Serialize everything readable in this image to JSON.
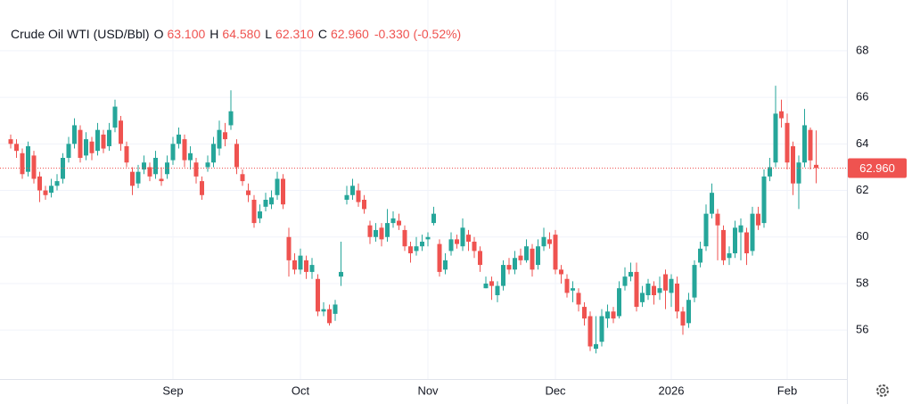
{
  "chart_data": {
    "type": "candlestick",
    "title": "Crude Oil WTI (USD/Bbl)",
    "quote": [
      {
        "key": "O",
        "value": "63.100"
      },
      {
        "key": "H",
        "value": "64.580"
      },
      {
        "key": "L",
        "value": "62.310"
      },
      {
        "key": "C",
        "value": "62.960"
      }
    ],
    "change": "-0.330",
    "change_percent": "(-0.52%)",
    "last_price": {
      "value": 62.96,
      "label": "62.960"
    },
    "up_color": "#26a69a",
    "down_color": "#ef5350",
    "ylim": [
      53.9,
      70.18
    ],
    "yticks": [
      56,
      58,
      60,
      62,
      64,
      66,
      68
    ],
    "grid": true,
    "categories": [
      null,
      null,
      null,
      null,
      null,
      null,
      null,
      null,
      null,
      null,
      null,
      null,
      null,
      null,
      null,
      null,
      null,
      null,
      null,
      null,
      null,
      null,
      null,
      null,
      null,
      null,
      null,
      null,
      "Sep",
      null,
      null,
      null,
      null,
      null,
      null,
      null,
      null,
      null,
      null,
      null,
      null,
      null,
      null,
      null,
      null,
      null,
      null,
      null,
      null,
      null,
      "Oct",
      null,
      null,
      null,
      null,
      null,
      null,
      null,
      null,
      null,
      null,
      null,
      null,
      null,
      null,
      null,
      null,
      null,
      null,
      null,
      null,
      null,
      "Nov",
      null,
      null,
      null,
      null,
      null,
      null,
      null,
      null,
      null,
      null,
      null,
      null,
      null,
      null,
      null,
      null,
      null,
      null,
      null,
      null,
      null,
      "Dec",
      null,
      null,
      null,
      null,
      null,
      null,
      null,
      null,
      null,
      null,
      null,
      null,
      null,
      null,
      null,
      null,
      null,
      null,
      null,
      "2026",
      null,
      null,
      null,
      null,
      null,
      null,
      null,
      null,
      null,
      null,
      null,
      null,
      null,
      null,
      null,
      null,
      null,
      null,
      null,
      "Feb",
      null,
      null,
      null,
      null,
      null
    ],
    "open": [
      64.2,
      64.0,
      63.6,
      62.8,
      63.5,
      62.6,
      62.0,
      61.9,
      62.2,
      62.5,
      63.4,
      64.0,
      64.6,
      63.5,
      64.1,
      63.7,
      64.4,
      63.9,
      64.7,
      65.0,
      63.9,
      62.8,
      62.3,
      62.9,
      63.0,
      62.7,
      62.5,
      62.7,
      63.3,
      64.0,
      64.2,
      63.3,
      63.2,
      62.4,
      63.0,
      63.2,
      63.8,
      64.5,
      64.8,
      64.0,
      62.7,
      62.0,
      61.6,
      60.8,
      61.3,
      61.4,
      61.8,
      62.5,
      60.0,
      59.0,
      58.6,
      59.0,
      58.5,
      58.2,
      56.8,
      56.9,
      56.7,
      58.3,
      61.6,
      61.8,
      62.0,
      61.6,
      60.5,
      60.0,
      60.4,
      60.0,
      60.6,
      60.7,
      60.3,
      59.6,
      59.4,
      59.6,
      59.9,
      60.6,
      59.7,
      58.6,
      59.4,
      59.9,
      59.6,
      60.1,
      59.8,
      59.4,
      57.8,
      58.1,
      57.5,
      57.9,
      58.8,
      58.6,
      59.2,
      59.0,
      59.5,
      58.8,
      59.6,
      59.9,
      60.1,
      58.6,
      58.2,
      57.7,
      57.6,
      57.0,
      56.6,
      55.2,
      55.5,
      56.5,
      56.8,
      56.6,
      57.9,
      58.3,
      58.5,
      57.2,
      57.5,
      57.9,
      57.6,
      58.4,
      57.6,
      58.0,
      56.8,
      56.3,
      57.4,
      58.9,
      59.6,
      61.0,
      61.0,
      60.3,
      59.1,
      59.3,
      60.2,
      60.2,
      59.4,
      61.0,
      60.6,
      62.6,
      63.2,
      65.4,
      64.9,
      63.9,
      62.3,
      63.2,
      64.6,
      63.1
    ],
    "high": [
      64.4,
      64.2,
      63.8,
      64.1,
      63.7,
      62.8,
      62.2,
      62.5,
      62.7,
      63.6,
      64.3,
      65.1,
      64.8,
      64.5,
      64.3,
      64.9,
      64.6,
      64.9,
      65.9,
      65.2,
      64.1,
      63.0,
      63.1,
      63.5,
      63.2,
      63.7,
      63.0,
      63.5,
      64.3,
      64.7,
      64.4,
      63.9,
      63.4,
      62.6,
      63.5,
      64.3,
      65.0,
      64.9,
      66.3,
      64.2,
      62.9,
      62.3,
      61.8,
      61.4,
      61.9,
      62.0,
      62.8,
      62.7,
      60.4,
      59.3,
      59.5,
      59.2,
      59.1,
      58.4,
      57.2,
      57.1,
      57.3,
      59.8,
      62.2,
      62.5,
      62.3,
      61.8,
      60.7,
      60.6,
      60.6,
      61.2,
      61.1,
      61.0,
      60.5,
      59.8,
      60.0,
      60.1,
      60.2,
      61.3,
      59.9,
      59.3,
      60.2,
      60.1,
      60.8,
      60.3,
      60.0,
      59.6,
      58.3,
      58.3,
      58.1,
      59.0,
      59.1,
      59.4,
      59.5,
      59.9,
      59.7,
      59.9,
      60.4,
      60.2,
      60.3,
      58.8,
      58.4,
      58.1,
      57.8,
      57.2,
      56.8,
      56.6,
      56.9,
      57.1,
      57.0,
      58.1,
      58.7,
      58.9,
      58.9,
      57.9,
      58.2,
      58.1,
      58.3,
      58.6,
      58.4,
      58.3,
      57.0,
      57.6,
      59.0,
      59.8,
      61.4,
      62.3,
      61.2,
      60.5,
      59.6,
      60.7,
      60.8,
      60.4,
      61.3,
      61.3,
      62.9,
      63.4,
      66.5,
      65.9,
      65.3,
      64.1,
      63.5,
      65.5,
      64.7,
      64.58
    ],
    "low": [
      63.8,
      63.4,
      62.5,
      62.6,
      62.3,
      61.5,
      61.6,
      61.7,
      62.0,
      62.3,
      63.2,
      63.8,
      63.2,
      63.3,
      63.3,
      63.5,
      63.6,
      63.7,
      64.5,
      63.7,
      63.0,
      61.8,
      62.1,
      62.7,
      62.4,
      62.5,
      62.2,
      62.5,
      63.1,
      63.8,
      63.0,
      62.9,
      62.3,
      61.6,
      62.8,
      63.0,
      63.5,
      63.9,
      64.6,
      62.7,
      62.2,
      61.5,
      60.4,
      60.6,
      61.1,
      61.2,
      61.6,
      61.2,
      58.3,
      58.4,
      58.4,
      58.2,
      58.2,
      56.6,
      56.6,
      56.2,
      56.4,
      57.9,
      61.4,
      61.6,
      61.3,
      61.0,
      59.7,
      59.8,
      59.6,
      59.8,
      60.4,
      60.3,
      59.4,
      58.9,
      59.2,
      59.4,
      59.6,
      60.5,
      58.3,
      58.4,
      59.2,
      59.5,
      59.4,
      59.4,
      59.1,
      58.5,
      57.8,
      57.3,
      57.2,
      57.7,
      58.4,
      58.4,
      58.8,
      58.9,
      58.3,
      58.6,
      59.4,
      59.5,
      58.4,
      58.0,
      57.4,
      57.2,
      56.8,
      56.2,
      55.1,
      55.0,
      55.3,
      56.1,
      56.3,
      56.5,
      57.7,
      58.1,
      56.8,
      57.0,
      57.3,
      57.1,
      57.3,
      56.9,
      57.0,
      56.5,
      55.8,
      56.1,
      57.2,
      58.7,
      59.4,
      60.8,
      59.0,
      58.8,
      58.8,
      59.1,
      59.0,
      58.8,
      59.2,
      60.3,
      60.4,
      62.4,
      63.0,
      64.7,
      62.9,
      61.8,
      61.2,
      63.0,
      62.9,
      62.31
    ],
    "close": [
      64.0,
      63.7,
      62.7,
      63.9,
      62.5,
      62.0,
      61.8,
      62.2,
      62.4,
      63.4,
      64.0,
      64.8,
      63.4,
      64.2,
      63.6,
      64.6,
      63.8,
      64.6,
      65.6,
      64.0,
      63.2,
      62.2,
      62.8,
      63.2,
      62.6,
      63.4,
      62.4,
      63.2,
      64.0,
      64.4,
      63.3,
      63.6,
      62.6,
      61.8,
      63.2,
      64.0,
      64.6,
      64.2,
      65.4,
      63.0,
      62.4,
      61.8,
      60.6,
      61.1,
      61.6,
      61.7,
      62.5,
      61.4,
      59.0,
      58.6,
      59.2,
      58.5,
      58.8,
      56.8,
      56.9,
      56.3,
      57.1,
      58.5,
      61.8,
      62.2,
      61.5,
      61.2,
      60.0,
      60.3,
      59.9,
      60.6,
      60.8,
      60.5,
      59.6,
      59.3,
      59.6,
      59.8,
      60.0,
      61.0,
      58.5,
      59.0,
      59.9,
      59.7,
      60.4,
      59.8,
      59.4,
      58.8,
      58.0,
      57.9,
      57.9,
      58.8,
      58.6,
      59.1,
      59.0,
      59.6,
      58.6,
      59.6,
      60.0,
      59.7,
      58.6,
      58.4,
      57.6,
      57.8,
      57.1,
      56.5,
      55.3,
      55.4,
      56.6,
      56.8,
      56.5,
      57.8,
      58.3,
      58.5,
      57.0,
      57.6,
      58.0,
      57.5,
      57.8,
      57.7,
      58.2,
      56.8,
      56.2,
      57.3,
      58.8,
      59.5,
      61.0,
      61.9,
      60.5,
      59.0,
      59.3,
      60.4,
      60.5,
      59.3,
      61.0,
      60.5,
      62.6,
      63.0,
      65.3,
      65.1,
      63.2,
      62.3,
      63.2,
      64.8,
      63.29,
      62.96
    ]
  }
}
